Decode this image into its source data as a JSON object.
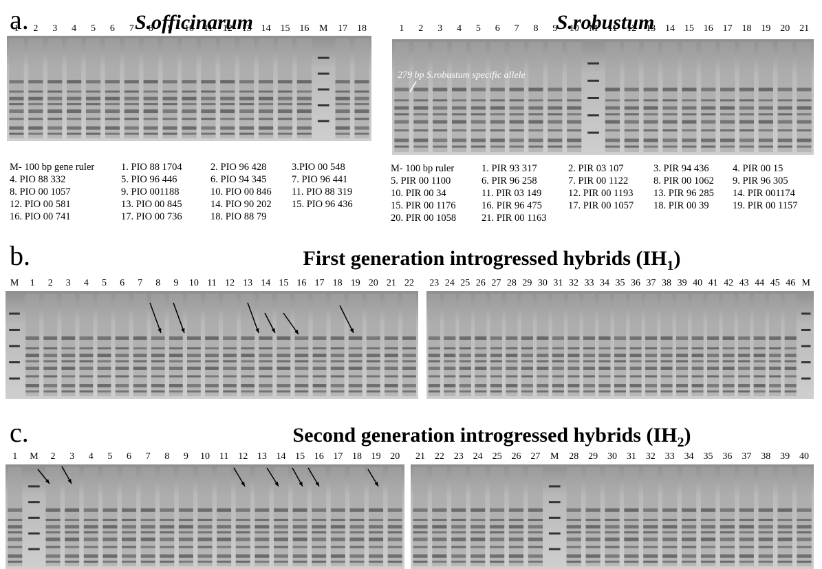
{
  "panel_a": {
    "label": "a.",
    "left": {
      "title": "S.officinarum",
      "lanes": [
        "1",
        "2",
        "3",
        "4",
        "5",
        "6",
        "7",
        "8",
        "9",
        "10",
        "11",
        "12",
        "13",
        "14",
        "15",
        "16",
        "M",
        "17",
        "18"
      ],
      "legend": [
        [
          "M- 100 bp gene ruler",
          "1. PIO 88 1704",
          "2. PIO 96 428",
          "3.PIO 00 548"
        ],
        [
          "4. PIO 88 332",
          "5. PIO 96 446",
          "6. PIO 94 345",
          "7. PIO 96 441"
        ],
        [
          "8. PIO 00 1057",
          "9. PIO 001188",
          "10. PIO 00 846",
          "11. PIO 88 319"
        ],
        [
          "12. PIO 00 581",
          "13. PIO 00 845",
          "14. PIO 90 202",
          "15. PIO 96 436"
        ],
        [
          "16. PIO 00 741",
          "17. PIO 00 736",
          "18. PIO 88 79"
        ]
      ]
    },
    "right": {
      "title": "S.robustum",
      "lanes": [
        "1",
        "2",
        "3",
        "4",
        "5",
        "6",
        "7",
        "8",
        "9",
        "10",
        "M",
        "11",
        "12",
        "13",
        "14",
        "15",
        "16",
        "17",
        "18",
        "19",
        "20",
        "21"
      ],
      "annotation": "279 bp S.robustum specific allele",
      "legend": [
        [
          "M- 100 bp ruler",
          "1. PIR 93 317",
          "2. PIR 03 107",
          "3. PIR 94 436",
          "4. PIR 00 15"
        ],
        [
          "5. PIR 00 1100",
          "6. PIR 96 258",
          "7. PIR 00 1122",
          "8. PIR 00 1062",
          "9. PIR 96 305"
        ],
        [
          "10. PIR 00 34",
          "11. PIR 03 149",
          "12. PIR 00 1193",
          "13. PIR 96 285",
          "14. PIR 001174"
        ],
        [
          "15. PIR 00 1176",
          "16. PIR 96 475",
          "17. PIR 00 1057",
          "18. PIR 00 39",
          "19. PIR 00 1157"
        ],
        [
          "20. PIR 00 1058",
          "21. PIR 00 1163"
        ]
      ]
    }
  },
  "panel_b": {
    "label": "b.",
    "title": "First generation introgressed hybrids (IH",
    "title_sub": "1",
    "title_end": ")",
    "lanes_left": [
      "M",
      "1",
      "2",
      "3",
      "4",
      "5",
      "6",
      "7",
      "8",
      "9",
      "10",
      "11",
      "12",
      "13",
      "14",
      "15",
      "16",
      "17",
      "18",
      "19",
      "20",
      "21",
      "22"
    ],
    "lanes_right": [
      "23",
      "24",
      "25",
      "26",
      "27",
      "28",
      "29",
      "30",
      "31",
      "32",
      "33",
      "34",
      "35",
      "36",
      "37",
      "38",
      "39",
      "40",
      "41",
      "42",
      "43",
      "44",
      "45",
      "46",
      "M"
    ]
  },
  "panel_c": {
    "label": "c.",
    "title": "Second generation introgressed hybrids (IH",
    "title_sub": "2",
    "title_end": ")",
    "lanes_left": [
      "1",
      "M",
      "2",
      "3",
      "4",
      "5",
      "6",
      "7",
      "8",
      "9",
      "10",
      "11",
      "12",
      "13",
      "14",
      "15",
      "16",
      "17",
      "18",
      "19",
      "20"
    ],
    "lanes_right": [
      "21",
      "22",
      "23",
      "24",
      "25",
      "26",
      "27",
      "M",
      "28",
      "29",
      "30",
      "31",
      "32",
      "33",
      "34",
      "35",
      "36",
      "37",
      "38",
      "39",
      "40"
    ]
  }
}
